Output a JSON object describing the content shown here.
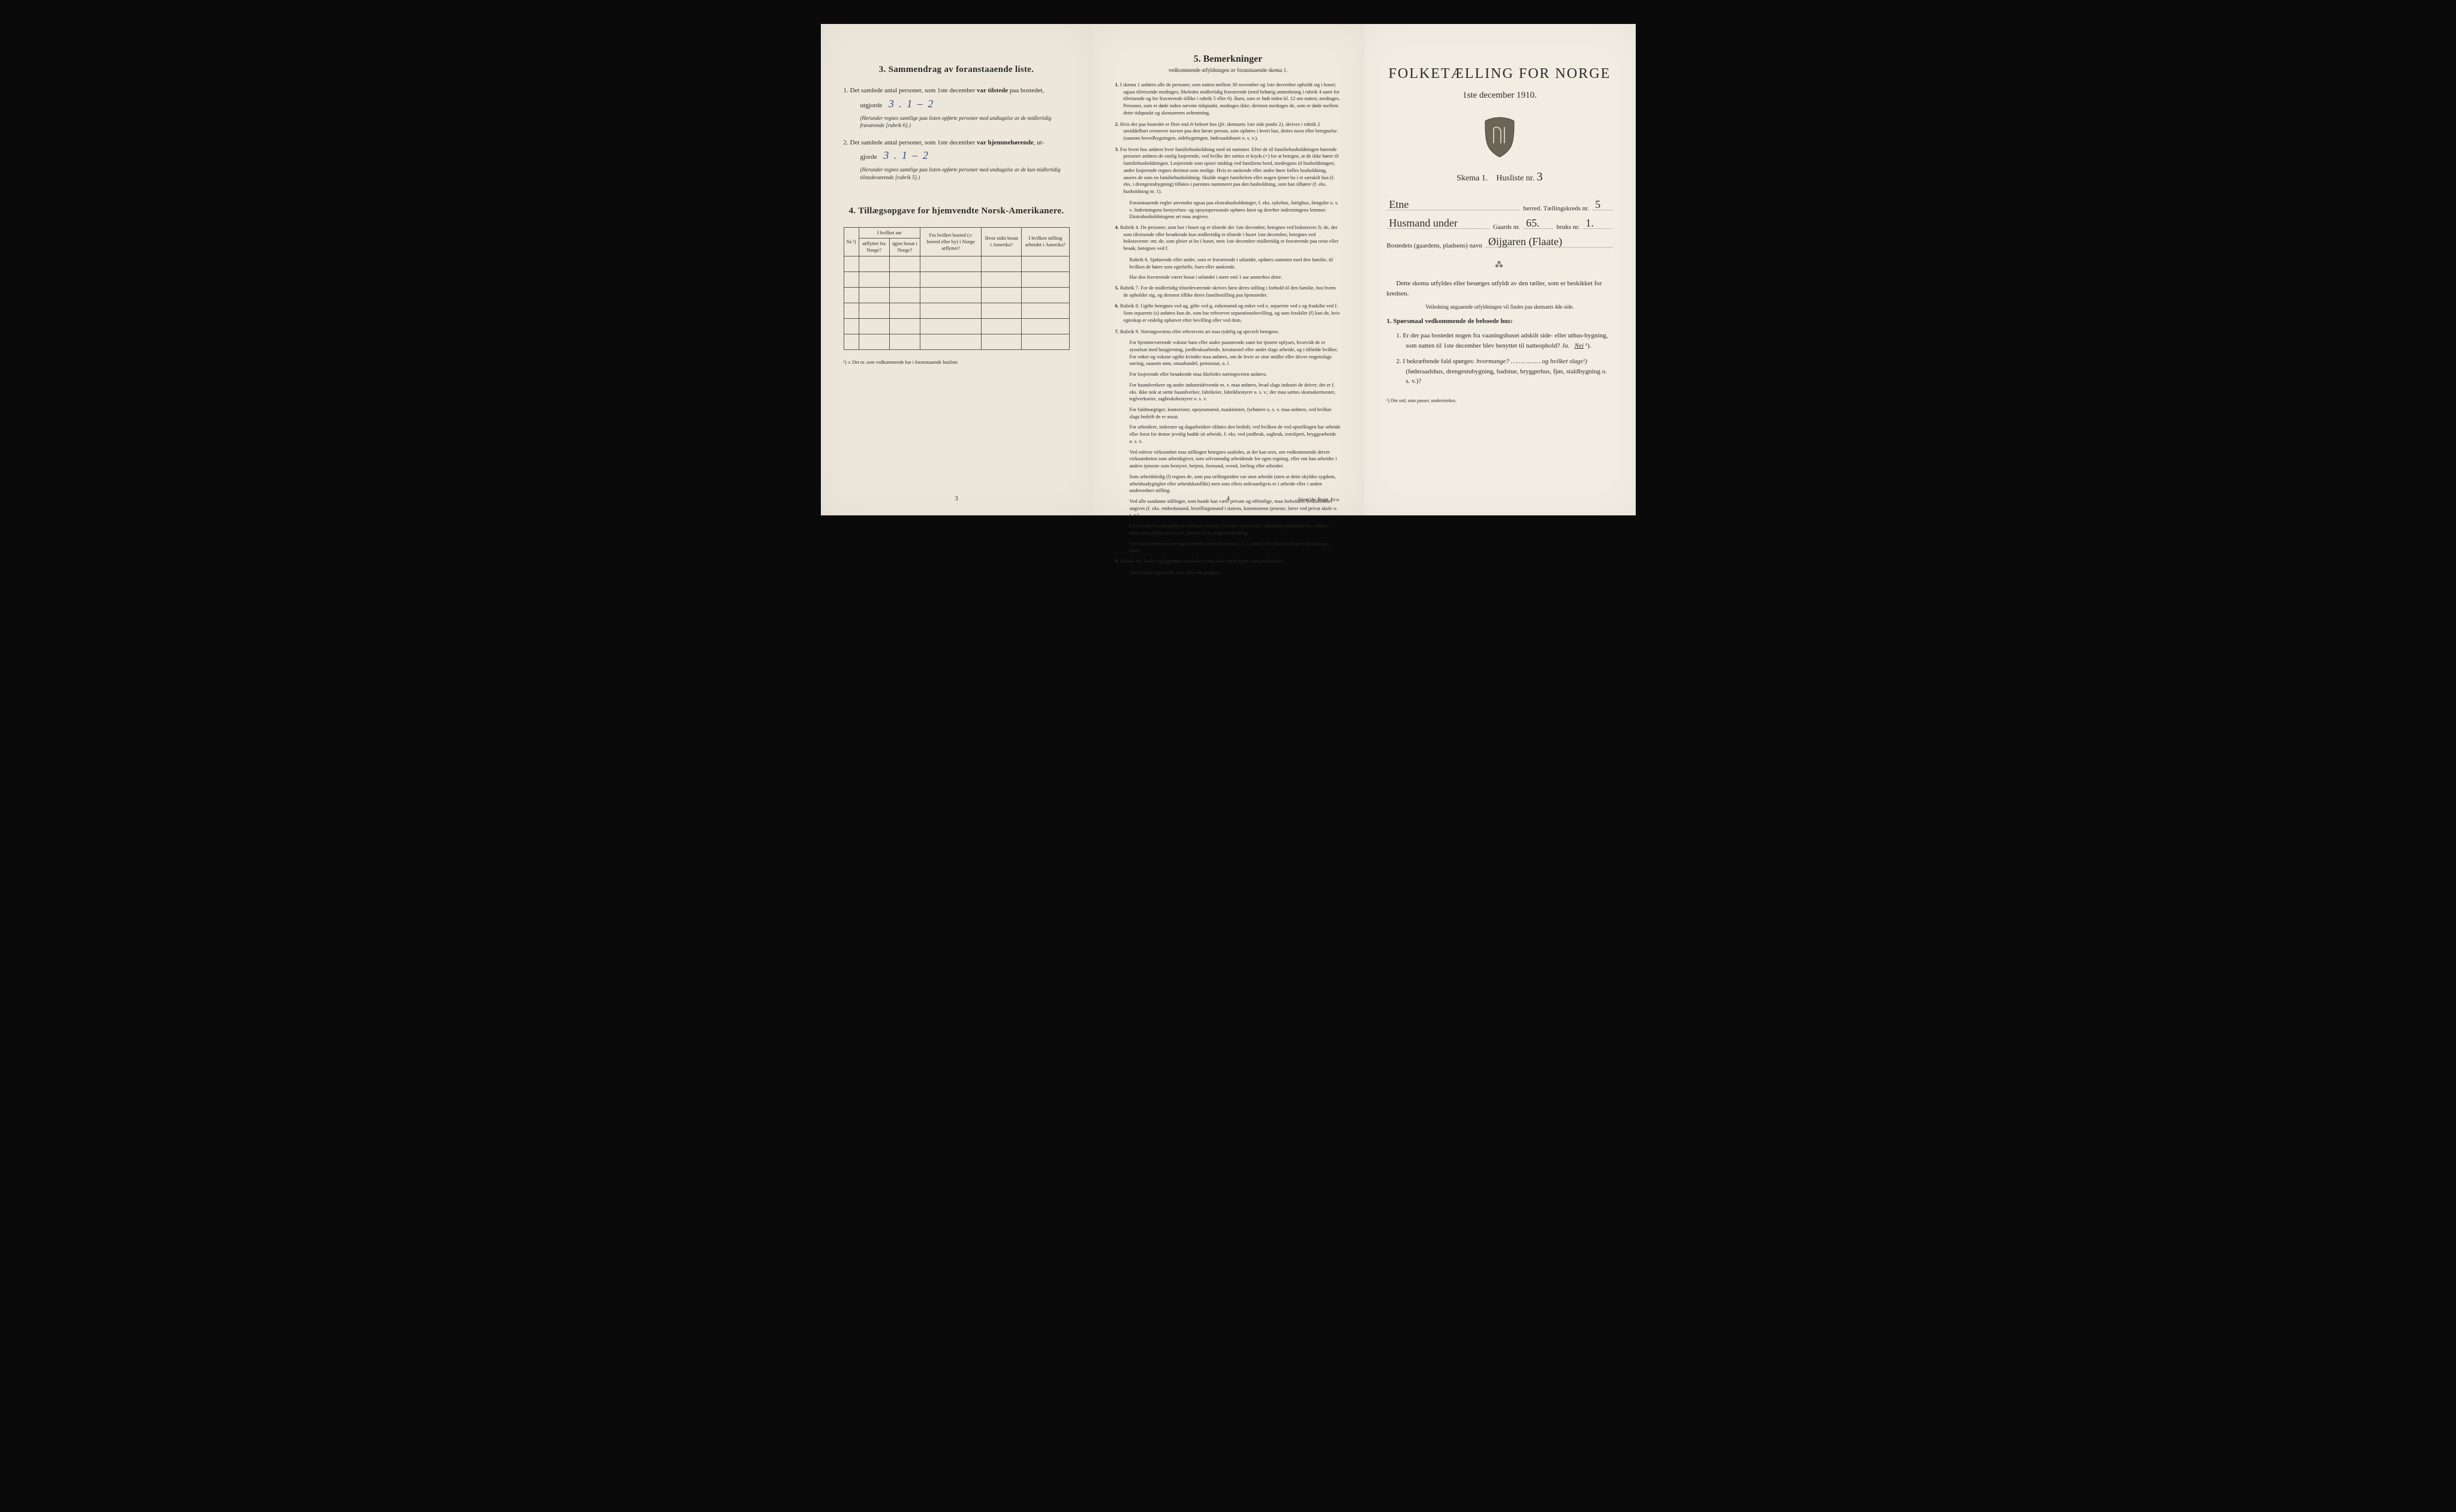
{
  "colors": {
    "paper_left": "#ece7da",
    "paper_mid": "#eee9dc",
    "paper_right": "#f2ede2",
    "ink": "#2a2a2a",
    "handwriting": "#3a4a7a",
    "background": "#0a0a0a"
  },
  "left": {
    "section3": {
      "title": "3.   Sammendrag av foranstaaende liste.",
      "items": [
        {
          "n": "1.",
          "text_a": "Det samlede antal personer, som 1ste december ",
          "bold": "var tilstede",
          "text_b": " paa bostedet,",
          "text_c": "utgjorde ",
          "hand": "3 .    1 – 2",
          "note": "(Herunder regnes samtlige paa listen opførte personer med undtagelse av de midlertidig fraværende [rubrik 6].)"
        },
        {
          "n": "2.",
          "text_a": "Det samlede antal personer, som 1ste december ",
          "bold": "var hjemmehørende",
          "text_b": ", ut-",
          "text_c": "gjorde ",
          "hand": "3 .    1 – 2",
          "note": "(Herunder regnes samtlige paa listen opførte personer med undtagelse av de kun midlertidig tilstedeværende [rubrik 5].)"
        }
      ]
    },
    "section4": {
      "title": "4.   Tillægsopgave for hjemvendte Norsk-Amerikanere.",
      "table": {
        "head_row1": [
          "",
          "I hvilket aar",
          "",
          "",
          ""
        ],
        "head_row2": [
          "Nr.¹)",
          "utflyttet fra Norge?",
          "igjen bosat i Norge?",
          "Fra hvilket bosted (ɔ: herred eller by) i Norge utflyttet?",
          "Hvor sidst bosat i Amerika?",
          "I hvilken stilling arbeidet i Amerika?"
        ],
        "blank_rows": 6
      },
      "footnote": "¹) ɔ: Det nr. som vedkommende har i foranstaaende husliste."
    },
    "page_num": "3"
  },
  "mid": {
    "title": "5.   Bemerkninger",
    "subtitle": "vedkommende utfyldningen av foranstaaende skema 1.",
    "items": [
      {
        "n": "1.",
        "text": "I skema 1 anføres alle de personer, som natten mellem 30 november og 1ste december opholdt sig i huset; ogsaa tilreisende medtages; likeledes midlertidig fraværende (med behørig anmerkning i rubrik 4 samt for tilreisende og for fraværende tillike i rubrik 5 eller 6). Barn, som er født inden kl. 12 om natten, medtages. Personer, som er døde inden nævnte tidspunkt, medtages ikke; derimot medtages de, som er døde mellem dette tidspunkt og skemaernes avhentning."
      },
      {
        "n": "2.",
        "text": "Hvis der paa bostedet er flere end ét beboet hus (jfr. skemaets 1ste side punkt 2), skrives i rubrik 2 umiddelbart ovenover navnet paa den første person, som opføres i hvert hus, dettes navn eller betegnelse (saasom hovedbygningen, sidebygningen, føderaadshuset o. s. v.)."
      },
      {
        "n": "3.",
        "text": "For hvert hus anføres hver familiehusholdning med sit nummer. Efter de til familiehusholdningen hørende personer anføres de enslig losjerende, ved hvilke der sættes et kryds (×) for at betegne, at de ikke hører til familiehusholdningen. Losjerende som spiser middag ved familiens bord, medregnes til husholdningen; andre losjerende regnes derimot som enslige. Hvis to søskende eller andre fører fælles husholdning, ansees de som en familiehusholdning. Skulde noget familielem eller nogen tjener bo i et særskilt hus (f. eks. i drengestubygning) tilføies i parentes nummeret paa den husholdning, som han tilhører (f. eks. husholdning nr. 1).",
        "sub": "Foranstaaende regler anvendes ogsaa paa ekstrahusholdninger, f. eks. sykehus, fattighus, fængsler o. s. v. Indretningens bestyrelses- og opsynspersonale opføres først og derefter indretningens lemmer. Ekstrahusholdningens art maa angives."
      },
      {
        "n": "4.",
        "text": "Rubrik 4. De personer, som bor i huset og er tilstede der 1ste december, betegnes ved bokstaven: b; de, der som tilreisende eller besøkende kun midlertidig er tilstede i huset 1ste december, betegnes ved bokstaverne: mt; de, som pleier at bo i huset, men 1ste december midlertidig er fraværende paa reise eller besøk, betegnes ved f.",
        "sub": "Rubrik 6. Sjøfarende eller andre, som er fraværende i utlandet, opføres sammen med den familie, til hvilken de hører som egtefælle, barn eller søskende.",
        "sub2": "Har den fraværende været bosat i utlandet i mere end 1 aar anmerkes dette."
      },
      {
        "n": "5.",
        "text": "Rubrik 7. For de midlertidig tilstedeværende skrives først deres stilling i forhold til den familie, hos hvem de opholder sig, og dernæst tillike deres familiestilling paa hjemstedet."
      },
      {
        "n": "6.",
        "text": "Rubrik 8. Ugifte betegnes ved ug, gifte ved g, enkemænd og enker ved e, separerte ved s og fraskilte ved f. Som separerte (s) anføres kun de, som har erhvervet separationsbevilling, og som fraskilte (f) kun de, hvis egteskap er endelig ophævet efter bevilling eller ved dom."
      },
      {
        "n": "7.",
        "text": "Rubrik 9. Næringsveiens eller erhvervets art maa tydelig og specielt betegnes.",
        "paras": [
          "For hjemmeværende voksne barn eller andre paarørende samt for tjenere oplyses, hvorvidt de er sysselsat med husgjerning, jordbruksarbeide, kreaturstel eller andet slags arbeide, og i tilfælde hvilket. For enker og voksne ugifte kvinder maa anføres, om de lever av sine midler eller driver nogenslags næring, saasom søm, smaahandel, pensionat, o. l.",
          "For losjerende eller besøkende maa likeledes næringsveien anføres.",
          "For haandverkere og andre industridrivende m. v. maa anføres, hvad slags industri de driver; det er f. eks. ikke nok at sætte haandverker, fabrikeier, fabrikbestyrer o. s. v.; der maa sættes skomakermester, teglverkseier, sagbruksbestyrer o. s. v.",
          "For fuldmægtiger, kontorister, opsynsmænd, maskinister, fyrbøtere o. s. v. maa anføres, ved hvilket slags bedrift de er ansat.",
          "For arbeidere, inderster og dagarbeidere tilføies den bedrift, ved hvilken de ved optællingen har arbeide eller forut for denne jevnlig hadde sit arbeide, f. eks. ved jordbruk, sagbruk, træsliperi, bryggearbeide o. s. v.",
          "Ved enhver virksomhet maa stillingen betegnes saaledes, at det kan sees, om vedkommende driver virksomheten som arbeidsgiver, som selvstændig arbeidende for egen regning, eller om han arbeider i andres tjeneste som bestyrer, betjent, formand, svend, lærling eller arbeider.",
          "Som arbeidsledig (l) regnes de, som paa tællingstiden var uten arbeide (uten at dette skyldes sygdom, arbeidsudygtighet eller arbeidskonflikt) men som ellers sedvaanligvis er i arbeide eller i anden underordnet stilling.",
          "Ved alle saadanne stillinger, som baade kan være private og offentlige, maa forholdets beskaffenhet angives (f. eks. embedsmand, bestillingsmand i statens, kommunens tjeneste, lærer ved privat skole o. s. v.).",
          "Lever man hovedsagelig av formue, pension, livrente, privat eller offentlig understøttelse, anføres dette, men tillike erhvervet, om det er av nogen betydning.",
          "Ved forhenværende næringsdrivende, embedsmænd o. s. v. sættes «fv» foran tidligere livsstillings navn."
        ]
      },
      {
        "n": "8.",
        "text": "Rubrik 14. Sinker og lignende aandssløve maa ikke medregnes som aandssvake.",
        "sub": "Som blinde regnes de, som ikke har gangsyn."
      }
    ],
    "page_num": "4",
    "printer": "Steen'ske Bogtr. Kr.a."
  },
  "right": {
    "title": "FOLKETÆLLING FOR NORGE",
    "date": "1ste december 1910.",
    "skema": {
      "label_a": "Skema 1.",
      "label_b": "Husliste nr.",
      "hand": "3"
    },
    "line_herred": {
      "hand": "Etne",
      "suffix": "herred.   Tællingskreds nr.",
      "hand2": "5"
    },
    "line_gaard": {
      "hand_pre": "Husmand under",
      "label": "Gaards nr.",
      "hand": "65.",
      "label2": "bruks nr.",
      "hand2": "1."
    },
    "line_bosted": {
      "label": "Bostedets (gaardens, pladsens) navn",
      "hand": "Øijgaren (Flaate)"
    },
    "body_p1": "Dette skema utfyldes eller besørges utfyldt av den tæller, som er beskikket for kredsen.",
    "body_p2": "Veiledning angaaende utfyldningen vil findes paa skemaets 4de side.",
    "q_head": "1. Spørsmaal vedkommende de beboede hus:",
    "questions": [
      {
        "n": "1.",
        "text_a": "Er der paa bostedet nogen fra vaaningshuset adskilt side- eller uthus-bygning, som natten til 1ste december blev benyttet til natteophold?    ",
        "ja": "Ja.",
        "nei": "Nei",
        "sup": " ¹)."
      },
      {
        "n": "2.",
        "text_a": "I bekræftende fald spørges: ",
        "ital": "hvormange? …………… og hvilket slags¹)",
        "text_b": "(føderaadshus, drengestubygning, badstue, bryggerhus, fjøs, staldbygning o. s. v.)?"
      }
    ],
    "footnote": "¹) Det ord, som passer, understrekes."
  }
}
